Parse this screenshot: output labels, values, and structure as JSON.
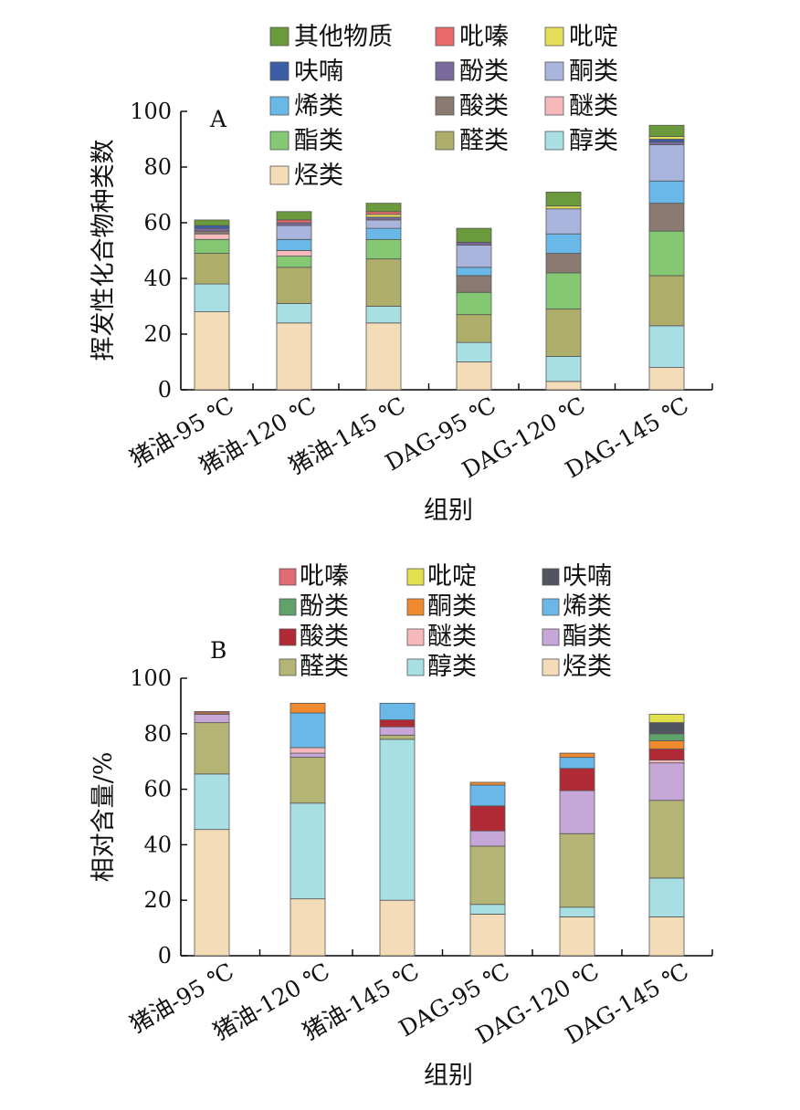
{
  "chart_data": [
    {
      "type": "bar",
      "stacked": true,
      "panel_label": "A",
      "xlabel": "组别",
      "ylabel": "挥发性化合物种类数",
      "ylim": [
        0,
        100
      ],
      "yticks": [
        "0",
        "20",
        "40",
        "60",
        "80",
        "100"
      ],
      "categories": [
        "猪油-95 ℃",
        "猪油-120 ℃",
        "猪油-145 ℃",
        "DAG-95 ℃",
        "DAG-120 ℃",
        "DAG-145 ℃"
      ],
      "legend_position": "top",
      "legend_order": [
        "其他物质",
        "吡嗪",
        "吡啶",
        "呋喃",
        "酚类",
        "酮类",
        "烯类",
        "酸类",
        "醚类",
        "酯类",
        "醛类",
        "醇类",
        "烃类"
      ],
      "series": [
        {
          "name": "烃类",
          "color": "#f5dcb8",
          "values": [
            28,
            24,
            24,
            10,
            3,
            8
          ]
        },
        {
          "name": "醇类",
          "color": "#a7dfe3",
          "values": [
            10,
            7,
            6,
            7,
            9,
            15
          ]
        },
        {
          "name": "醛类",
          "color": "#aead6a",
          "values": [
            11,
            13,
            17,
            10,
            17,
            18
          ]
        },
        {
          "name": "酯类",
          "color": "#84c874",
          "values": [
            5,
            4,
            7,
            8,
            13,
            16
          ]
        },
        {
          "name": "醚类",
          "color": "#f6b9bc",
          "values": [
            2,
            2,
            0,
            0,
            0,
            0
          ]
        },
        {
          "name": "酸类",
          "color": "#8a7a72",
          "values": [
            1,
            0,
            0,
            6,
            7,
            10
          ]
        },
        {
          "name": "烯类",
          "color": "#6ab8e8",
          "values": [
            0,
            4,
            4,
            3,
            7,
            8
          ]
        },
        {
          "name": "酮类",
          "color": "#a9b5dd",
          "values": [
            0,
            5,
            3,
            8,
            9,
            13
          ]
        },
        {
          "name": "酚类",
          "color": "#7a6a9c",
          "values": [
            1,
            1,
            1,
            1,
            0,
            1
          ]
        },
        {
          "name": "呋喃",
          "color": "#3b5ea6",
          "values": [
            1,
            0,
            0,
            0,
            0,
            1
          ]
        },
        {
          "name": "吡啶",
          "color": "#e3df5a",
          "values": [
            0,
            0,
            1,
            0,
            1,
            1
          ]
        },
        {
          "name": "吡嗪",
          "color": "#e86a6a",
          "values": [
            0,
            1,
            1,
            0,
            0,
            0
          ]
        },
        {
          "name": "其他物质",
          "color": "#6a9a3c",
          "values": [
            2,
            3,
            3,
            5,
            5,
            4
          ]
        }
      ]
    },
    {
      "type": "bar",
      "stacked": true,
      "panel_label": "B",
      "xlabel": "组别",
      "ylabel": "相对含量/%",
      "ylim": [
        0,
        100
      ],
      "yticks": [
        "0",
        "20",
        "40",
        "60",
        "80",
        "100"
      ],
      "categories": [
        "猪油-95 ℃",
        "猪油-120 ℃",
        "猪油-145 ℃",
        "DAG-95 ℃",
        "DAG-120 ℃",
        "DAG-145 ℃"
      ],
      "legend_position": "top",
      "legend_order": [
        "吡嗪",
        "吡啶",
        "呋喃",
        "酚类",
        "酮类",
        "烯类",
        "酸类",
        "醚类",
        "酯类",
        "醛类",
        "醇类",
        "烃类"
      ],
      "series": [
        {
          "name": "烃类",
          "color": "#f5dcb8",
          "values": [
            45.5,
            20.5,
            20,
            15,
            14,
            14
          ]
        },
        {
          "name": "醇类",
          "color": "#a7dfe3",
          "values": [
            20,
            34.5,
            58,
            3.5,
            3.5,
            14
          ]
        },
        {
          "name": "醛类",
          "color": "#b4b474",
          "values": [
            18.5,
            16.5,
            1.5,
            21,
            26.5,
            28
          ]
        },
        {
          "name": "酯类",
          "color": "#c7a6d8",
          "values": [
            3,
            1.5,
            3,
            5.5,
            15.5,
            13.5
          ]
        },
        {
          "name": "醚类",
          "color": "#f6b9bc",
          "values": [
            0,
            2,
            0,
            0,
            0,
            1
          ]
        },
        {
          "name": "酸类",
          "color": "#b02a35",
          "values": [
            0,
            0,
            2.5,
            9,
            8,
            4
          ]
        },
        {
          "name": "烯类",
          "color": "#6ab8e8",
          "values": [
            0,
            12.5,
            6,
            7.5,
            4,
            0
          ]
        },
        {
          "name": "酮类",
          "color": "#f08a2e",
          "values": [
            0.5,
            3.5,
            0,
            1,
            1.5,
            3
          ]
        },
        {
          "name": "酚类",
          "color": "#5fa26a",
          "values": [
            0,
            0,
            0,
            0,
            0,
            2.5
          ]
        },
        {
          "name": "呋喃",
          "color": "#505560",
          "values": [
            0,
            0,
            0,
            0,
            0,
            4
          ]
        },
        {
          "name": "吡啶",
          "color": "#e2e04c",
          "values": [
            0,
            0,
            0,
            0,
            0,
            3
          ]
        },
        {
          "name": "吡嗪",
          "color": "#e06c74",
          "values": [
            0.5,
            0,
            0,
            0,
            0,
            0
          ]
        }
      ]
    }
  ]
}
